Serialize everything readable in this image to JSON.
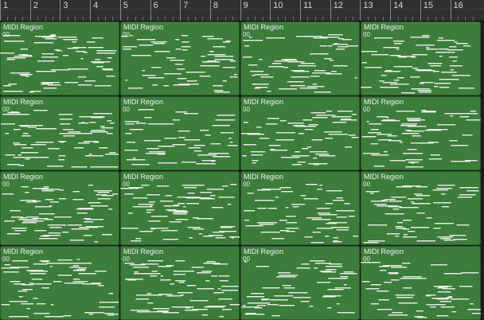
{
  "ruler": {
    "bars": [
      "1",
      "2",
      "3",
      "4",
      "5",
      "6",
      "7",
      "8",
      "9",
      "10",
      "11",
      "12",
      "13",
      "14",
      "15",
      "16"
    ]
  },
  "regions": [
    {
      "name": "MIDI Region",
      "sub": "00"
    },
    {
      "name": "MIDI Region",
      "sub": "00"
    },
    {
      "name": "MIDI Region",
      "sub": "00"
    },
    {
      "name": "MIDI Region",
      "sub": "00"
    },
    {
      "name": "MIDI Region",
      "sub": "00"
    },
    {
      "name": "MIDI Region",
      "sub": "00"
    },
    {
      "name": "MIDI Region",
      "sub": "00"
    },
    {
      "name": "MIDI Region",
      "sub": "00"
    },
    {
      "name": "MIDI Region",
      "sub": "00"
    },
    {
      "name": "MIDI Region",
      "sub": "00"
    },
    {
      "name": "MIDI Region",
      "sub": "00"
    },
    {
      "name": "MIDI Region",
      "sub": "00"
    },
    {
      "name": "MIDI Region",
      "sub": "00"
    },
    {
      "name": "MIDI Region",
      "sub": "00"
    },
    {
      "name": "MIDI Region",
      "sub": "00"
    },
    {
      "name": "MIDI Region",
      "sub": "00"
    }
  ],
  "colors": {
    "region_fill": "#3c7d3b",
    "note": "#ecefe8",
    "ruler": "#303030"
  }
}
